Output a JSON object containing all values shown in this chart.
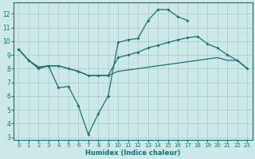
{
  "xlabel": "Humidex (Indice chaleur)",
  "bg_color": "#cce8e8",
  "grid_color": "#aacece",
  "line_color": "#1a7070",
  "xlim": [
    -0.5,
    23.5
  ],
  "ylim": [
    2.8,
    12.8
  ],
  "yticks": [
    3,
    4,
    5,
    6,
    7,
    8,
    9,
    10,
    11,
    12
  ],
  "xticks": [
    0,
    1,
    2,
    3,
    4,
    5,
    6,
    7,
    8,
    9,
    10,
    11,
    12,
    13,
    14,
    15,
    16,
    17,
    18,
    19,
    20,
    21,
    22,
    23
  ],
  "line1_x": [
    0,
    1,
    2,
    3,
    4,
    5,
    6,
    7,
    8,
    9,
    10,
    11,
    12,
    13,
    14,
    15,
    16,
    17,
    18
  ],
  "line1_y": [
    9.4,
    8.6,
    8.0,
    8.2,
    6.6,
    6.7,
    5.3,
    3.2,
    4.7,
    6.0,
    9.9,
    10.1,
    10.2,
    11.5,
    12.3,
    12.3,
    11.8,
    11.5,
    null
  ],
  "line2_x": [
    0,
    1,
    2,
    3,
    4,
    5,
    6,
    7,
    8,
    9,
    10,
    11,
    12,
    13,
    14,
    15,
    16,
    17,
    18,
    19,
    20,
    21,
    22,
    23
  ],
  "line2_y": [
    9.4,
    8.6,
    8.1,
    8.2,
    8.2,
    8.0,
    7.8,
    7.5,
    7.5,
    7.5,
    8.8,
    9.0,
    9.2,
    9.5,
    9.7,
    9.9,
    10.1,
    10.25,
    10.35,
    9.8,
    9.5,
    9.0,
    8.6,
    8.0
  ],
  "line3_x": [
    0,
    1,
    2,
    3,
    4,
    5,
    6,
    7,
    8,
    9,
    10,
    11,
    12,
    13,
    14,
    15,
    16,
    17,
    18,
    19,
    20,
    21,
    22,
    23
  ],
  "line3_y": [
    9.4,
    8.6,
    8.1,
    8.2,
    8.2,
    8.0,
    7.8,
    7.5,
    7.5,
    7.5,
    7.8,
    7.9,
    8.0,
    8.1,
    8.2,
    8.3,
    8.4,
    8.5,
    8.6,
    8.7,
    8.8,
    8.6,
    8.6,
    8.0
  ]
}
